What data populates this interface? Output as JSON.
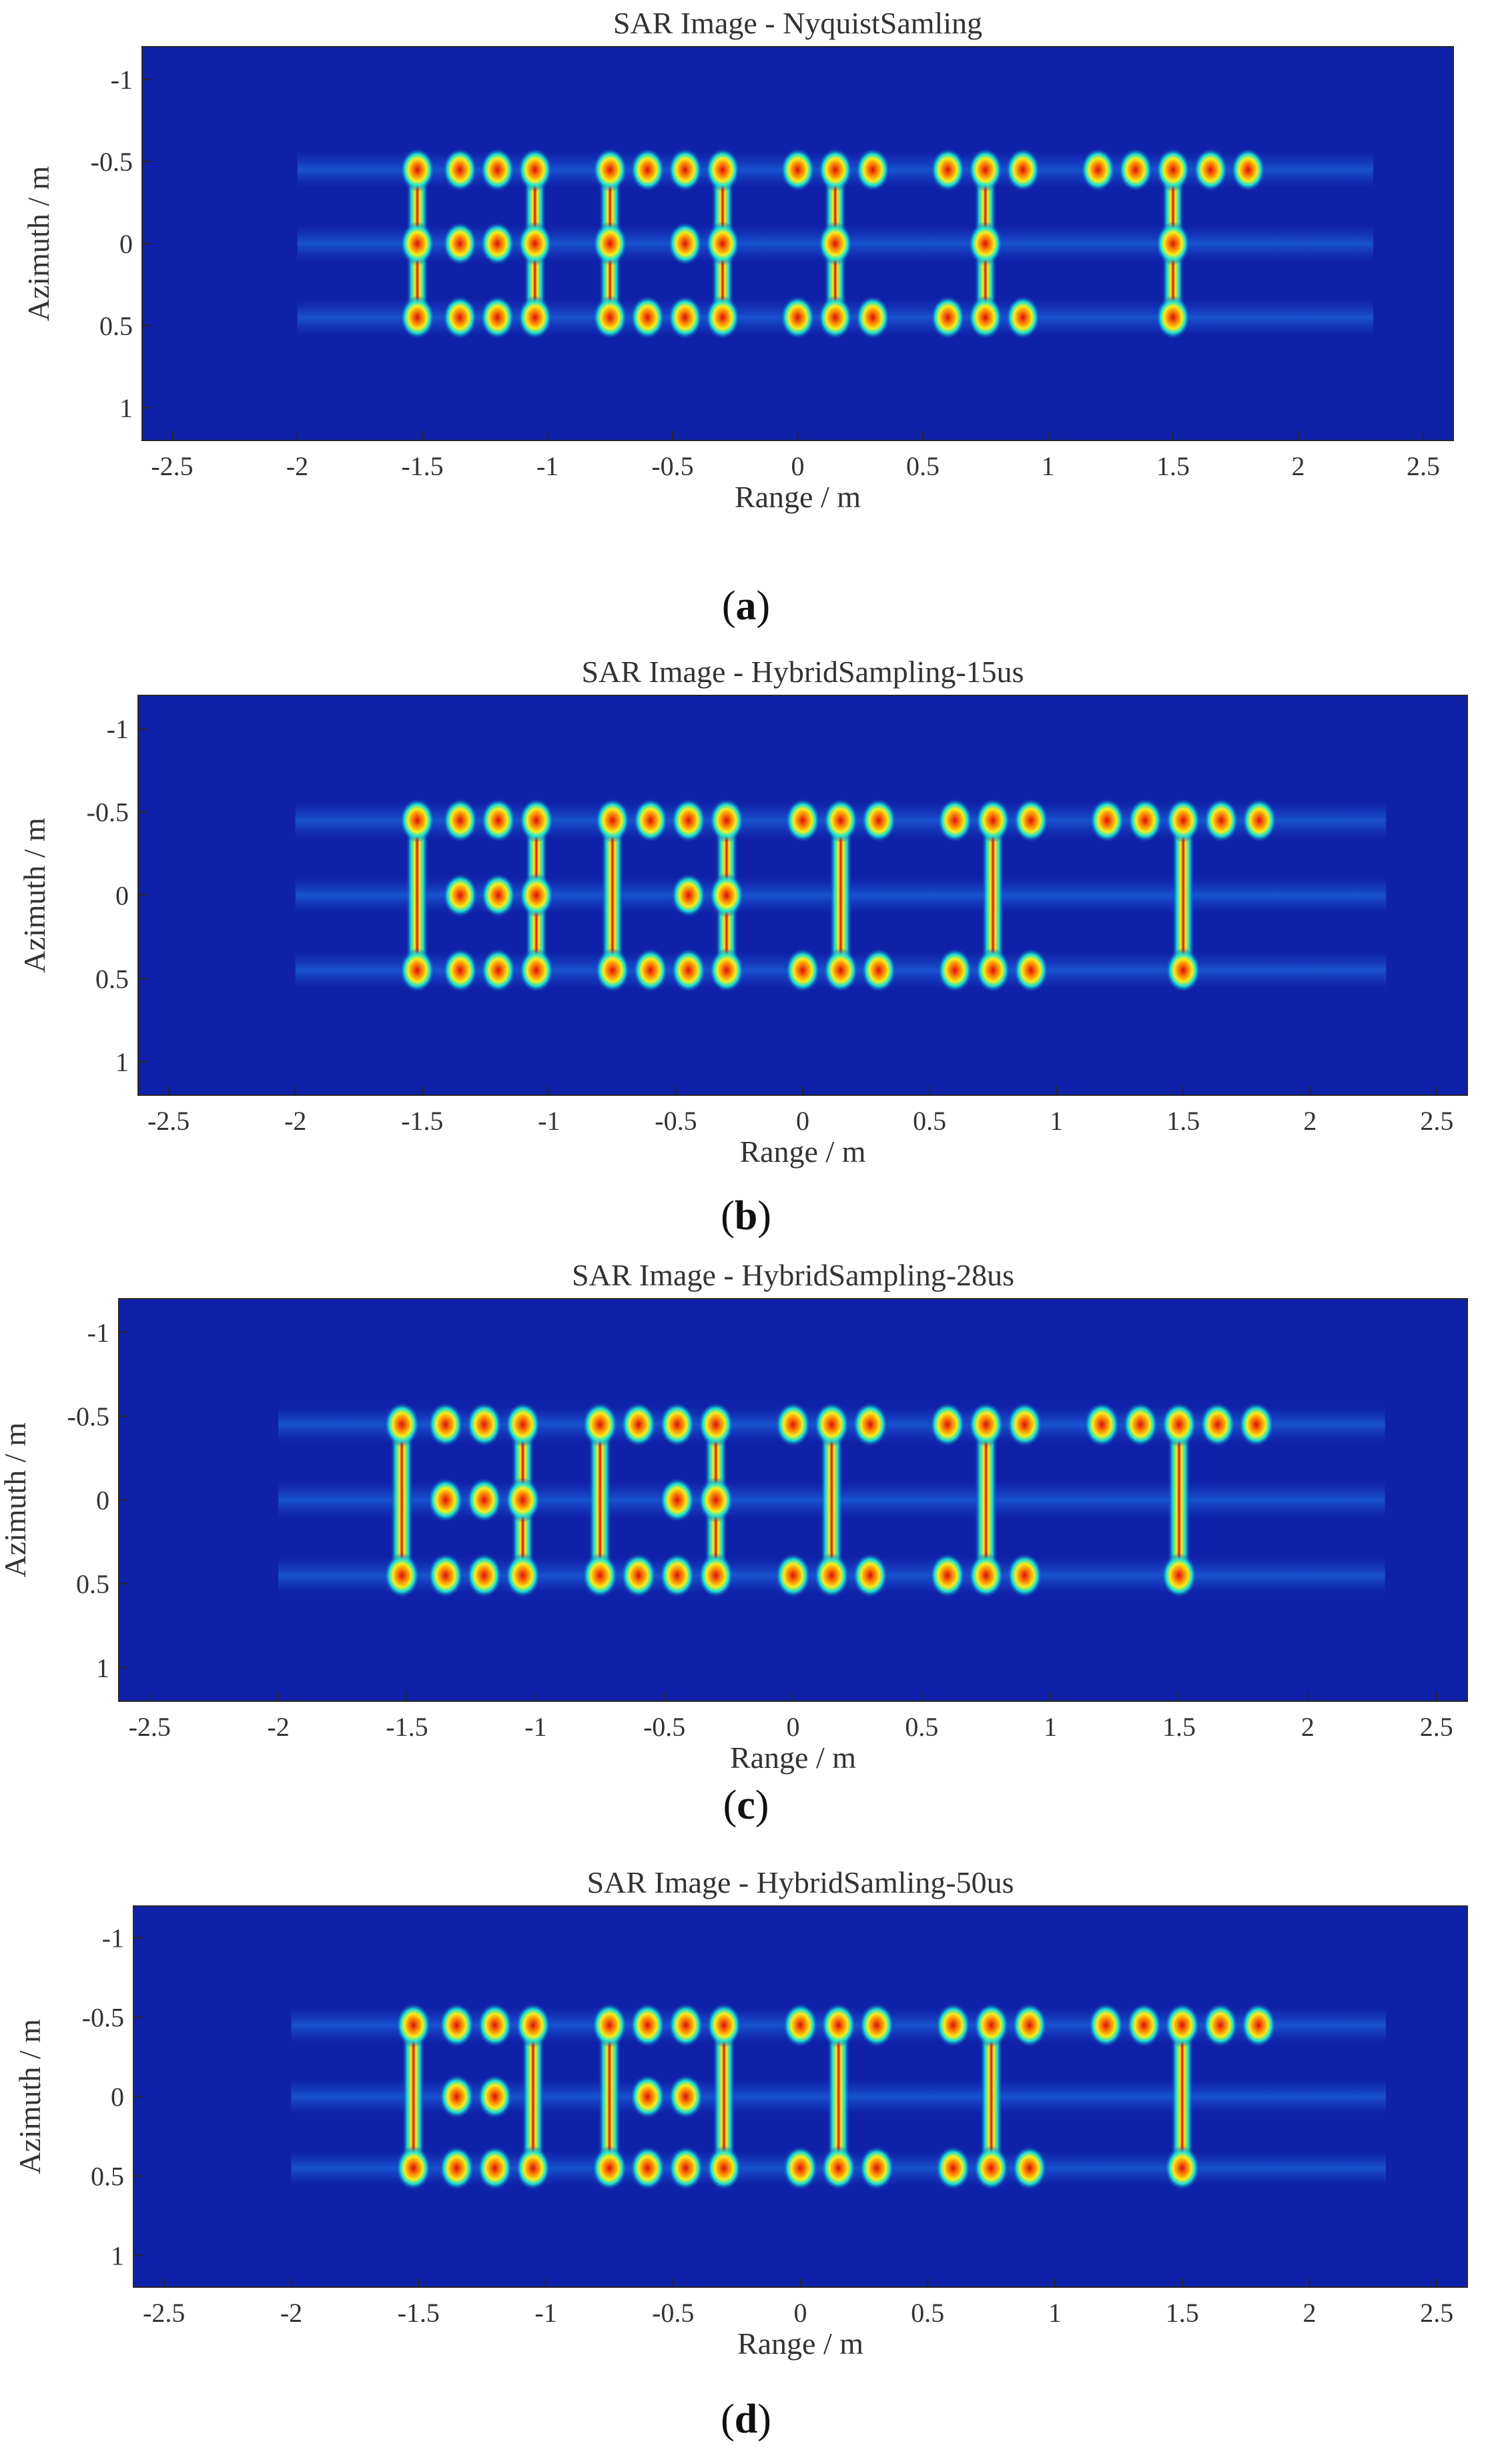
{
  "chart_data": [
    {
      "type": "heatmap",
      "title": "SAR Image - NyquistSamling",
      "xlabel": "Range / m",
      "ylabel": "Azimuth / m",
      "xlim": [
        -2.62,
        2.62
      ],
      "ylim": [
        -1.2,
        1.2
      ],
      "y_reversed": true,
      "xticks": [
        -2.5,
        -2,
        -1.5,
        -1,
        -0.5,
        0,
        0.5,
        1,
        1.5,
        2,
        2.5
      ],
      "xtick_labels": [
        "-2.5",
        "-2",
        "-1.5",
        "-1",
        "-0.5",
        "0",
        "0.5",
        "1",
        "1.5",
        "2",
        "2.5"
      ],
      "yticks": [
        -1,
        -0.5,
        0,
        0.5,
        1
      ],
      "ytick_labels": [
        "-1",
        "-0.5",
        "0",
        "0.5",
        "1"
      ],
      "colormap": "jet",
      "targets": [
        {
          "x": -1.52,
          "y": -0.45
        },
        {
          "x": -1.35,
          "y": -0.45
        },
        {
          "x": -1.2,
          "y": -0.45
        },
        {
          "x": -1.05,
          "y": -0.45
        },
        {
          "x": -1.52,
          "y": 0.0
        },
        {
          "x": -1.35,
          "y": 0.0
        },
        {
          "x": -1.2,
          "y": 0.0
        },
        {
          "x": -1.05,
          "y": 0.0
        },
        {
          "x": -1.52,
          "y": 0.45
        },
        {
          "x": -1.35,
          "y": 0.45
        },
        {
          "x": -1.2,
          "y": 0.45
        },
        {
          "x": -1.05,
          "y": 0.45
        },
        {
          "x": -0.75,
          "y": -0.45
        },
        {
          "x": -0.6,
          "y": -0.45
        },
        {
          "x": -0.45,
          "y": -0.45
        },
        {
          "x": -0.3,
          "y": -0.45
        },
        {
          "x": -0.75,
          "y": 0.0
        },
        {
          "x": -0.45,
          "y": 0.0
        },
        {
          "x": -0.3,
          "y": 0.0
        },
        {
          "x": -0.75,
          "y": 0.45
        },
        {
          "x": -0.6,
          "y": 0.45
        },
        {
          "x": -0.45,
          "y": 0.45
        },
        {
          "x": -0.3,
          "y": 0.45
        },
        {
          "x": 0.0,
          "y": -0.45
        },
        {
          "x": 0.15,
          "y": -0.45
        },
        {
          "x": 0.3,
          "y": -0.45
        },
        {
          "x": 0.15,
          "y": 0.0
        },
        {
          "x": 0.0,
          "y": 0.45
        },
        {
          "x": 0.15,
          "y": 0.45
        },
        {
          "x": 0.3,
          "y": 0.45
        },
        {
          "x": 0.6,
          "y": -0.45
        },
        {
          "x": 0.75,
          "y": -0.45
        },
        {
          "x": 0.9,
          "y": -0.45
        },
        {
          "x": 0.75,
          "y": 0.0
        },
        {
          "x": 0.6,
          "y": 0.45
        },
        {
          "x": 0.75,
          "y": 0.45
        },
        {
          "x": 0.9,
          "y": 0.45
        },
        {
          "x": 1.2,
          "y": -0.45
        },
        {
          "x": 1.35,
          "y": -0.45
        },
        {
          "x": 1.5,
          "y": -0.45
        },
        {
          "x": 1.65,
          "y": -0.45
        },
        {
          "x": 1.8,
          "y": -0.45
        },
        {
          "x": 1.5,
          "y": 0.0
        },
        {
          "x": 1.5,
          "y": 0.45
        }
      ],
      "vertical_strokes": [
        {
          "x": -1.52,
          "y1": -0.45,
          "y2": 0.45
        },
        {
          "x": -1.05,
          "y1": -0.45,
          "y2": 0.45
        },
        {
          "x": -0.75,
          "y1": -0.45,
          "y2": 0.45
        },
        {
          "x": -0.3,
          "y1": -0.45,
          "y2": 0.45
        },
        {
          "x": 0.15,
          "y1": -0.45,
          "y2": 0.45
        },
        {
          "x": 0.75,
          "y1": -0.45,
          "y2": 0.45
        },
        {
          "x": 1.5,
          "y1": -0.45,
          "y2": 0.45
        }
      ]
    },
    {
      "type": "heatmap",
      "title": "SAR Image - HybridSampling-15us",
      "xlabel": "Range / m",
      "ylabel": "Azimuth / m",
      "xlim": [
        -2.62,
        2.62
      ],
      "ylim": [
        -1.2,
        1.2
      ],
      "y_reversed": true,
      "xticks": [
        -2.5,
        -2,
        -1.5,
        -1,
        -0.5,
        0,
        0.5,
        1,
        1.5,
        2,
        2.5
      ],
      "xtick_labels": [
        "-2.5",
        "-2",
        "-1.5",
        "-1",
        "-0.5",
        "0",
        "0.5",
        "1",
        "1.5",
        "2",
        "2.5"
      ],
      "yticks": [
        -1,
        -0.5,
        0,
        0.5,
        1
      ],
      "ytick_labels": [
        "-1",
        "-0.5",
        "0",
        "0.5",
        "1"
      ],
      "colormap": "jet",
      "targets": [
        {
          "x": -1.52,
          "y": -0.45
        },
        {
          "x": -1.35,
          "y": -0.45
        },
        {
          "x": -1.2,
          "y": -0.45
        },
        {
          "x": -1.05,
          "y": -0.45
        },
        {
          "x": -1.35,
          "y": 0.0
        },
        {
          "x": -1.2,
          "y": 0.0
        },
        {
          "x": -1.05,
          "y": 0.0
        },
        {
          "x": -1.52,
          "y": 0.45
        },
        {
          "x": -1.35,
          "y": 0.45
        },
        {
          "x": -1.2,
          "y": 0.45
        },
        {
          "x": -1.05,
          "y": 0.45
        },
        {
          "x": -0.75,
          "y": -0.45
        },
        {
          "x": -0.6,
          "y": -0.45
        },
        {
          "x": -0.45,
          "y": -0.45
        },
        {
          "x": -0.3,
          "y": -0.45
        },
        {
          "x": -0.45,
          "y": 0.0
        },
        {
          "x": -0.3,
          "y": 0.0
        },
        {
          "x": -0.75,
          "y": 0.45
        },
        {
          "x": -0.6,
          "y": 0.45
        },
        {
          "x": -0.45,
          "y": 0.45
        },
        {
          "x": -0.3,
          "y": 0.45
        },
        {
          "x": 0.0,
          "y": -0.45
        },
        {
          "x": 0.15,
          "y": -0.45
        },
        {
          "x": 0.3,
          "y": -0.45
        },
        {
          "x": 0.0,
          "y": 0.45
        },
        {
          "x": 0.15,
          "y": 0.45
        },
        {
          "x": 0.3,
          "y": 0.45
        },
        {
          "x": 0.6,
          "y": -0.45
        },
        {
          "x": 0.75,
          "y": -0.45
        },
        {
          "x": 0.9,
          "y": -0.45
        },
        {
          "x": 0.6,
          "y": 0.45
        },
        {
          "x": 0.75,
          "y": 0.45
        },
        {
          "x": 0.9,
          "y": 0.45
        },
        {
          "x": 1.2,
          "y": -0.45
        },
        {
          "x": 1.35,
          "y": -0.45
        },
        {
          "x": 1.5,
          "y": -0.45
        },
        {
          "x": 1.65,
          "y": -0.45
        },
        {
          "x": 1.8,
          "y": -0.45
        },
        {
          "x": 1.5,
          "y": 0.45
        }
      ],
      "vertical_strokes": [
        {
          "x": -1.52,
          "y1": -0.45,
          "y2": 0.45
        },
        {
          "x": -1.05,
          "y1": -0.45,
          "y2": 0.45
        },
        {
          "x": -0.75,
          "y1": -0.45,
          "y2": 0.45
        },
        {
          "x": -0.3,
          "y1": -0.45,
          "y2": 0.45
        },
        {
          "x": 0.15,
          "y1": -0.45,
          "y2": 0.45
        },
        {
          "x": 0.75,
          "y1": -0.45,
          "y2": 0.45
        },
        {
          "x": 1.5,
          "y1": -0.45,
          "y2": 0.45
        }
      ]
    },
    {
      "type": "heatmap",
      "title": "SAR Image - HybridSampling-28us",
      "xlabel": "Range / m",
      "ylabel": "Azimuth / m",
      "xlim": [
        -2.62,
        2.62
      ],
      "ylim": [
        -1.2,
        1.2
      ],
      "y_reversed": true,
      "xticks": [
        -2.5,
        -2,
        -1.5,
        -1,
        -0.5,
        0,
        0.5,
        1,
        1.5,
        2,
        2.5
      ],
      "xtick_labels": [
        "-2.5",
        "-2",
        "-1.5",
        "-1",
        "-0.5",
        "0",
        "0.5",
        "1",
        "1.5",
        "2",
        "2.5"
      ],
      "yticks": [
        -1,
        -0.5,
        0,
        0.5,
        1
      ],
      "ytick_labels": [
        "-1",
        "-0.5",
        "0",
        "0.5",
        "1"
      ],
      "colormap": "jet",
      "targets": [
        {
          "x": -1.52,
          "y": -0.45
        },
        {
          "x": -1.35,
          "y": -0.45
        },
        {
          "x": -1.2,
          "y": -0.45
        },
        {
          "x": -1.05,
          "y": -0.45
        },
        {
          "x": -1.35,
          "y": 0.0
        },
        {
          "x": -1.2,
          "y": 0.0
        },
        {
          "x": -1.05,
          "y": 0.0
        },
        {
          "x": -1.52,
          "y": 0.45
        },
        {
          "x": -1.35,
          "y": 0.45
        },
        {
          "x": -1.2,
          "y": 0.45
        },
        {
          "x": -1.05,
          "y": 0.45
        },
        {
          "x": -0.75,
          "y": -0.45
        },
        {
          "x": -0.6,
          "y": -0.45
        },
        {
          "x": -0.45,
          "y": -0.45
        },
        {
          "x": -0.3,
          "y": -0.45
        },
        {
          "x": -0.45,
          "y": 0.0
        },
        {
          "x": -0.3,
          "y": 0.0
        },
        {
          "x": -0.75,
          "y": 0.45
        },
        {
          "x": -0.6,
          "y": 0.45
        },
        {
          "x": -0.45,
          "y": 0.45
        },
        {
          "x": -0.3,
          "y": 0.45
        },
        {
          "x": 0.0,
          "y": -0.45
        },
        {
          "x": 0.15,
          "y": -0.45
        },
        {
          "x": 0.3,
          "y": -0.45
        },
        {
          "x": 0.0,
          "y": 0.45
        },
        {
          "x": 0.15,
          "y": 0.45
        },
        {
          "x": 0.3,
          "y": 0.45
        },
        {
          "x": 0.6,
          "y": -0.45
        },
        {
          "x": 0.75,
          "y": -0.45
        },
        {
          "x": 0.9,
          "y": -0.45
        },
        {
          "x": 0.6,
          "y": 0.45
        },
        {
          "x": 0.75,
          "y": 0.45
        },
        {
          "x": 0.9,
          "y": 0.45
        },
        {
          "x": 1.2,
          "y": -0.45
        },
        {
          "x": 1.35,
          "y": -0.45
        },
        {
          "x": 1.5,
          "y": -0.45
        },
        {
          "x": 1.65,
          "y": -0.45
        },
        {
          "x": 1.8,
          "y": -0.45
        },
        {
          "x": 1.5,
          "y": 0.45
        }
      ],
      "vertical_strokes": [
        {
          "x": -1.52,
          "y1": -0.45,
          "y2": 0.45
        },
        {
          "x": -1.05,
          "y1": -0.45,
          "y2": 0.45
        },
        {
          "x": -0.75,
          "y1": -0.45,
          "y2": 0.45
        },
        {
          "x": -0.3,
          "y1": -0.45,
          "y2": 0.45
        },
        {
          "x": 0.15,
          "y1": -0.45,
          "y2": 0.45
        },
        {
          "x": 0.75,
          "y1": -0.45,
          "y2": 0.45
        },
        {
          "x": 1.5,
          "y1": -0.45,
          "y2": 0.45
        }
      ]
    },
    {
      "type": "heatmap",
      "title": "SAR Image - HybridSamling-50us",
      "xlabel": "Range / m",
      "ylabel": "Azimuth / m",
      "xlim": [
        -2.62,
        2.62
      ],
      "ylim": [
        -1.2,
        1.2
      ],
      "y_reversed": true,
      "xticks": [
        -2.5,
        -2,
        -1.5,
        -1,
        -0.5,
        0,
        0.5,
        1,
        1.5,
        2,
        2.5
      ],
      "xtick_labels": [
        "-2.5",
        "-2",
        "-1.5",
        "-1",
        "-0.5",
        "0",
        "0.5",
        "1",
        "1.5",
        "2",
        "2.5"
      ],
      "yticks": [
        -1,
        -0.5,
        0,
        0.5,
        1
      ],
      "ytick_labels": [
        "-1",
        "-0.5",
        "0",
        "0.5",
        "1"
      ],
      "colormap": "jet",
      "targets": [
        {
          "x": -1.52,
          "y": -0.45
        },
        {
          "x": -1.35,
          "y": -0.45
        },
        {
          "x": -1.2,
          "y": -0.45
        },
        {
          "x": -1.05,
          "y": -0.45
        },
        {
          "x": -1.35,
          "y": 0.0
        },
        {
          "x": -1.2,
          "y": 0.0
        },
        {
          "x": -1.52,
          "y": 0.45
        },
        {
          "x": -1.35,
          "y": 0.45
        },
        {
          "x": -1.2,
          "y": 0.45
        },
        {
          "x": -1.05,
          "y": 0.45
        },
        {
          "x": -0.75,
          "y": -0.45
        },
        {
          "x": -0.6,
          "y": -0.45
        },
        {
          "x": -0.45,
          "y": -0.45
        },
        {
          "x": -0.3,
          "y": -0.45
        },
        {
          "x": -0.6,
          "y": 0.0
        },
        {
          "x": -0.45,
          "y": 0.0
        },
        {
          "x": -0.75,
          "y": 0.45
        },
        {
          "x": -0.6,
          "y": 0.45
        },
        {
          "x": -0.45,
          "y": 0.45
        },
        {
          "x": -0.3,
          "y": 0.45
        },
        {
          "x": 0.0,
          "y": -0.45
        },
        {
          "x": 0.15,
          "y": -0.45
        },
        {
          "x": 0.3,
          "y": -0.45
        },
        {
          "x": 0.0,
          "y": 0.45
        },
        {
          "x": 0.15,
          "y": 0.45
        },
        {
          "x": 0.3,
          "y": 0.45
        },
        {
          "x": 0.6,
          "y": -0.45
        },
        {
          "x": 0.75,
          "y": -0.45
        },
        {
          "x": 0.9,
          "y": -0.45
        },
        {
          "x": 0.6,
          "y": 0.45
        },
        {
          "x": 0.75,
          "y": 0.45
        },
        {
          "x": 0.9,
          "y": 0.45
        },
        {
          "x": 1.2,
          "y": -0.45
        },
        {
          "x": 1.35,
          "y": -0.45
        },
        {
          "x": 1.5,
          "y": -0.45
        },
        {
          "x": 1.65,
          "y": -0.45
        },
        {
          "x": 1.8,
          "y": -0.45
        },
        {
          "x": 1.5,
          "y": 0.45
        }
      ],
      "vertical_strokes": [
        {
          "x": -1.52,
          "y1": -0.45,
          "y2": 0.45
        },
        {
          "x": -1.05,
          "y1": -0.45,
          "y2": 0.45
        },
        {
          "x": -0.75,
          "y1": -0.45,
          "y2": 0.45
        },
        {
          "x": -0.3,
          "y1": -0.45,
          "y2": 0.45
        },
        {
          "x": 0.15,
          "y1": -0.45,
          "y2": 0.45
        },
        {
          "x": 0.75,
          "y1": -0.45,
          "y2": 0.45
        },
        {
          "x": 1.5,
          "y1": -0.45,
          "y2": 0.45
        }
      ]
    }
  ],
  "captions": [
    "a",
    "b",
    "c",
    "d"
  ],
  "colors": {
    "background": "#0f21a8",
    "colormap_low": "#0f21a8",
    "colormap_mid": "#18e8d8",
    "colormap_high": "#d81010"
  }
}
